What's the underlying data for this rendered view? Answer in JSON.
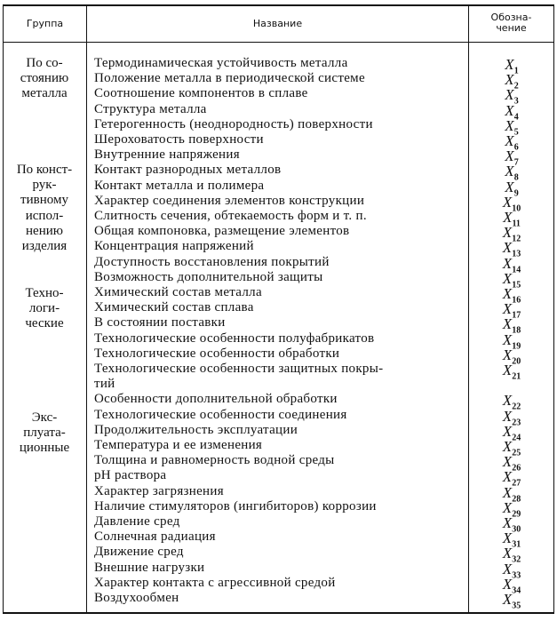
{
  "header": {
    "group": "Группа",
    "name": "Название",
    "symbol": "Обозна-\nчение"
  },
  "groups": [
    {
      "label": "По со-\nстоянию\nметалла"
    },
    {
      "label": "По конст-\nрук-\nтивному\nиспол-\nнению\nизделия"
    },
    {
      "label": "Техно-\nлоги-\nческие"
    },
    {
      "label": "Экс-\nплуата-\nционные"
    }
  ],
  "rows": [
    {
      "name": "Термодинамическая устойчивость металла",
      "letter": "X",
      "index": "1"
    },
    {
      "name": "Положение металла в периодической системе",
      "letter": "X",
      "index": "2"
    },
    {
      "name": "Соотношение компонентов в сплаве",
      "letter": "X",
      "index": "3"
    },
    {
      "name": "Структура металла",
      "letter": "X",
      "index": "4"
    },
    {
      "name": "Гетерогенность (неоднородность) поверхности",
      "letter": "X",
      "index": "5"
    },
    {
      "name": "Шероховатость поверхности",
      "letter": "X",
      "index": "6"
    },
    {
      "name": "Внутренние напряжения",
      "letter": "X",
      "index": "7"
    },
    {
      "name": "Контакт разнородных металлов",
      "letter": "X",
      "index": "8"
    },
    {
      "name": "Контакт металла и полимера",
      "letter": "X",
      "index": "9"
    },
    {
      "name": "Характер соединения элементов конструкции",
      "letter": "X",
      "index": "10"
    },
    {
      "name": "Слитность сечения, обтекаемость форм и т. п.",
      "letter": "X",
      "index": "11"
    },
    {
      "name": "Общая компоновка, размещение элементов",
      "letter": "X",
      "index": "12"
    },
    {
      "name": "Концентрация напряжений",
      "letter": "X",
      "index": "13"
    },
    {
      "name": "Доступность восстановления покрытий",
      "letter": "X",
      "index": "14"
    },
    {
      "name": "Возможность дополнительной защиты",
      "letter": "X",
      "index": "15"
    },
    {
      "name": "Химический состав металла",
      "letter": "X",
      "index": "16"
    },
    {
      "name": "Химический состав сплава",
      "letter": "X",
      "index": "17"
    },
    {
      "name": "В состоянии поставки",
      "letter": "X",
      "index": "18"
    },
    {
      "name": "Технологические особенности полуфабрикатов",
      "letter": "X",
      "index": "19"
    },
    {
      "name": "Технологические особенности обработки",
      "letter": "X",
      "index": "20"
    },
    {
      "name": "Технологические особенности защитных покры-\nтий",
      "letter": "X",
      "index": "21"
    },
    {
      "name": "Особенности дополнительной обработки",
      "letter": "X",
      "index": "22"
    },
    {
      "name": "Технологические особенности соединения",
      "letter": "X",
      "index": "23"
    },
    {
      "name": "Продолжительность эксплуатации",
      "letter": "X",
      "index": "24"
    },
    {
      "name": "Температура и ее изменения",
      "letter": "X",
      "index": "25"
    },
    {
      "name": "Толщина и равномерность водной среды",
      "letter": "X",
      "index": "26"
    },
    {
      "name": "pH раствора",
      "letter": "X",
      "index": "27"
    },
    {
      "name": "Характер загрязнения",
      "letter": "X",
      "index": "28"
    },
    {
      "name": "Наличие стимуляторов (ингибиторов) коррозии",
      "letter": "X",
      "index": "29"
    },
    {
      "name": "Давление сред",
      "letter": "X",
      "index": "30"
    },
    {
      "name": "Солнечная радиация",
      "letter": "X",
      "index": "31"
    },
    {
      "name": "Движение сред",
      "letter": "X",
      "index": "32"
    },
    {
      "name": "Внешние нагрузки",
      "letter": "X",
      "index": "33"
    },
    {
      "name": "Характер контакта с агрессивной средой",
      "letter": "X",
      "index": "34"
    },
    {
      "name": "Воздухообмен",
      "letter": "X",
      "index": "35"
    }
  ]
}
